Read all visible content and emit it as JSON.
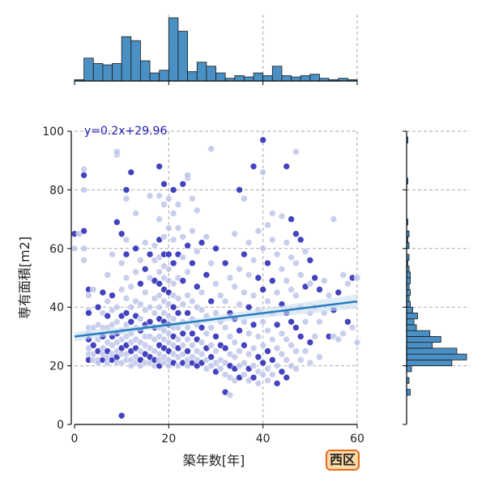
{
  "chart_data": {
    "type": "scatter",
    "xlabel": "築年数[年]",
    "ylabel": "専有面積[m2]",
    "xlim": [
      0,
      60
    ],
    "ylim": [
      0,
      100
    ],
    "x_ticks": [
      0,
      20,
      40,
      60
    ],
    "y_ticks": [
      0,
      20,
      40,
      60,
      80,
      100
    ],
    "grid": true,
    "regression": {
      "equation": "y=0.2x+29.96",
      "slope": 0.2,
      "intercept": 29.96
    },
    "badge": "西区",
    "colors": {
      "point_light": "#b6bde6",
      "point_dark": "#2222b4",
      "line": "#2a7bbf",
      "band": "#c9dff0",
      "hist": "#4a90c4",
      "badge_fill": "#fcd9a6",
      "badge_border": "#e86a1c"
    },
    "marginal_x_hist": {
      "bin_edges": [
        0,
        2,
        4,
        6,
        8,
        10,
        12,
        14,
        16,
        18,
        20,
        22,
        24,
        26,
        28,
        30,
        32,
        34,
        36,
        38,
        40,
        42,
        44,
        46,
        48,
        50,
        52,
        54,
        56,
        58,
        60
      ],
      "counts": [
        1,
        17,
        13,
        12,
        13,
        33,
        30,
        15,
        6,
        8,
        47,
        37,
        7,
        14,
        11,
        6,
        2,
        4,
        3,
        6,
        4,
        11,
        4,
        3,
        4,
        5,
        2,
        1,
        2,
        1
      ]
    },
    "marginal_y_hist": {
      "bin_edges": [
        10,
        12,
        14,
        16,
        18,
        20,
        22,
        24,
        26,
        28,
        30,
        32,
        34,
        36,
        38,
        40,
        42,
        44,
        46,
        48,
        50,
        52,
        54,
        56,
        58,
        60,
        62,
        64,
        66,
        68,
        70,
        72,
        74,
        76,
        78,
        80,
        82,
        84,
        86,
        88,
        90,
        92,
        94,
        96,
        98,
        100
      ],
      "counts": [
        3,
        0,
        2,
        0,
        4,
        37,
        49,
        41,
        21,
        28,
        19,
        8,
        6,
        9,
        5,
        3,
        2,
        3,
        2,
        3,
        3,
        2,
        1,
        2,
        0,
        2,
        1,
        2,
        0,
        1,
        0,
        0,
        0,
        0,
        0,
        0,
        1,
        0,
        0,
        0,
        0,
        0,
        0,
        1,
        0
      ]
    },
    "points": [
      [
        0,
        65
      ],
      [
        0,
        60
      ],
      [
        1,
        65
      ],
      [
        2,
        66
      ],
      [
        2,
        80
      ],
      [
        2,
        87
      ],
      [
        2,
        85
      ],
      [
        2,
        60
      ],
      [
        2,
        56
      ],
      [
        3,
        46
      ],
      [
        3,
        44
      ],
      [
        3,
        39
      ],
      [
        3,
        38
      ],
      [
        3,
        33
      ],
      [
        3,
        31
      ],
      [
        3,
        29
      ],
      [
        3,
        26
      ],
      [
        3,
        24
      ],
      [
        3,
        22
      ],
      [
        4,
        22
      ],
      [
        4,
        24
      ],
      [
        4,
        27
      ],
      [
        4,
        33
      ],
      [
        4,
        46
      ],
      [
        5,
        40
      ],
      [
        5,
        34
      ],
      [
        5,
        29
      ],
      [
        5,
        25
      ],
      [
        5,
        22
      ],
      [
        5,
        21
      ],
      [
        6,
        22
      ],
      [
        6,
        24
      ],
      [
        6,
        26
      ],
      [
        6,
        30
      ],
      [
        6,
        33
      ],
      [
        6,
        38
      ],
      [
        6,
        45
      ],
      [
        7,
        21
      ],
      [
        7,
        23
      ],
      [
        7,
        25
      ],
      [
        7,
        28
      ],
      [
        7,
        33
      ],
      [
        7,
        37
      ],
      [
        7,
        42
      ],
      [
        7,
        51
      ],
      [
        8,
        22
      ],
      [
        8,
        24
      ],
      [
        8,
        27
      ],
      [
        8,
        30
      ],
      [
        8,
        34
      ],
      [
        8,
        39
      ],
      [
        8,
        44
      ],
      [
        8,
        58
      ],
      [
        9,
        21
      ],
      [
        9,
        23
      ],
      [
        9,
        25
      ],
      [
        9,
        28
      ],
      [
        9,
        31
      ],
      [
        9,
        35
      ],
      [
        9,
        40
      ],
      [
        9,
        69
      ],
      [
        9,
        92
      ],
      [
        9,
        93
      ],
      [
        10,
        3
      ],
      [
        10,
        21
      ],
      [
        10,
        24
      ],
      [
        10,
        26
      ],
      [
        10,
        29
      ],
      [
        10,
        32
      ],
      [
        10,
        37
      ],
      [
        10,
        46
      ],
      [
        10,
        55
      ],
      [
        10,
        65
      ],
      [
        11,
        22
      ],
      [
        11,
        24
      ],
      [
        11,
        27
      ],
      [
        11,
        30
      ],
      [
        11,
        34
      ],
      [
        11,
        38
      ],
      [
        11,
        43
      ],
      [
        11,
        50
      ],
      [
        11,
        58
      ],
      [
        11,
        63
      ],
      [
        11,
        77
      ],
      [
        11,
        80
      ],
      [
        12,
        20
      ],
      [
        12,
        22
      ],
      [
        12,
        25
      ],
      [
        12,
        28
      ],
      [
        12,
        31
      ],
      [
        12,
        35
      ],
      [
        12,
        40
      ],
      [
        12,
        47
      ],
      [
        12,
        86
      ],
      [
        13,
        21
      ],
      [
        13,
        23
      ],
      [
        13,
        26
      ],
      [
        13,
        29
      ],
      [
        13,
        33
      ],
      [
        13,
        37
      ],
      [
        13,
        42
      ],
      [
        13,
        52
      ],
      [
        13,
        60
      ],
      [
        13,
        72
      ],
      [
        14,
        20
      ],
      [
        14,
        22
      ],
      [
        14,
        25
      ],
      [
        14,
        28
      ],
      [
        14,
        32
      ],
      [
        14,
        36
      ],
      [
        14,
        41
      ],
      [
        14,
        48
      ],
      [
        14,
        56
      ],
      [
        15,
        21
      ],
      [
        15,
        24
      ],
      [
        15,
        27
      ],
      [
        15,
        30
      ],
      [
        15,
        34
      ],
      [
        15,
        39
      ],
      [
        15,
        45
      ],
      [
        15,
        53
      ],
      [
        15,
        62
      ],
      [
        16,
        21
      ],
      [
        16,
        23
      ],
      [
        16,
        26
      ],
      [
        16,
        30
      ],
      [
        16,
        35
      ],
      [
        16,
        40
      ],
      [
        16,
        50
      ],
      [
        16,
        58
      ],
      [
        16,
        78
      ],
      [
        17,
        20
      ],
      [
        17,
        22
      ],
      [
        17,
        25
      ],
      [
        17,
        29
      ],
      [
        17,
        33
      ],
      [
        17,
        38
      ],
      [
        17,
        43
      ],
      [
        17,
        49
      ],
      [
        17,
        56
      ],
      [
        17,
        61
      ],
      [
        18,
        20
      ],
      [
        18,
        22
      ],
      [
        18,
        24
      ],
      [
        18,
        27
      ],
      [
        18,
        30
      ],
      [
        18,
        33
      ],
      [
        18,
        36
      ],
      [
        18,
        40
      ],
      [
        18,
        44
      ],
      [
        18,
        48
      ],
      [
        18,
        52
      ],
      [
        18,
        57
      ],
      [
        18,
        63
      ],
      [
        18,
        70
      ],
      [
        18,
        78
      ],
      [
        18,
        88
      ],
      [
        19,
        21
      ],
      [
        19,
        23
      ],
      [
        19,
        26
      ],
      [
        19,
        29
      ],
      [
        19,
        32
      ],
      [
        19,
        35
      ],
      [
        19,
        38
      ],
      [
        19,
        42
      ],
      [
        19,
        46
      ],
      [
        19,
        50
      ],
      [
        19,
        54
      ],
      [
        19,
        58
      ],
      [
        19,
        64
      ],
      [
        19,
        75
      ],
      [
        19,
        82
      ],
      [
        20,
        20
      ],
      [
        20,
        22
      ],
      [
        20,
        25
      ],
      [
        20,
        28
      ],
      [
        20,
        31
      ],
      [
        20,
        34
      ],
      [
        20,
        37
      ],
      [
        20,
        41
      ],
      [
        20,
        45
      ],
      [
        20,
        49
      ],
      [
        20,
        53
      ],
      [
        20,
        58
      ],
      [
        20,
        67
      ],
      [
        20,
        77
      ],
      [
        21,
        21
      ],
      [
        21,
        24
      ],
      [
        21,
        27
      ],
      [
        21,
        30
      ],
      [
        21,
        33
      ],
      [
        21,
        36
      ],
      [
        21,
        40
      ],
      [
        21,
        44
      ],
      [
        21,
        48
      ],
      [
        21,
        55
      ],
      [
        21,
        63
      ],
      [
        21,
        72
      ],
      [
        21,
        80
      ],
      [
        22,
        20
      ],
      [
        22,
        23
      ],
      [
        22,
        26
      ],
      [
        22,
        29
      ],
      [
        22,
        33
      ],
      [
        22,
        38
      ],
      [
        22,
        43
      ],
      [
        22,
        50
      ],
      [
        22,
        58
      ],
      [
        22,
        67
      ],
      [
        22,
        75
      ],
      [
        23,
        21
      ],
      [
        23,
        24
      ],
      [
        23,
        27
      ],
      [
        23,
        31
      ],
      [
        23,
        35
      ],
      [
        23,
        41
      ],
      [
        23,
        49
      ],
      [
        23,
        57
      ],
      [
        23,
        64
      ],
      [
        23,
        82
      ],
      [
        24,
        20
      ],
      [
        24,
        22
      ],
      [
        24,
        25
      ],
      [
        24,
        29
      ],
      [
        24,
        33
      ],
      [
        24,
        38
      ],
      [
        24,
        44
      ],
      [
        24,
        52
      ],
      [
        24,
        61
      ],
      [
        24,
        84
      ],
      [
        24,
        85
      ],
      [
        25,
        21
      ],
      [
        25,
        23
      ],
      [
        25,
        27
      ],
      [
        25,
        31
      ],
      [
        25,
        36
      ],
      [
        25,
        42
      ],
      [
        25,
        55
      ],
      [
        25,
        66
      ],
      [
        25,
        77
      ],
      [
        26,
        20
      ],
      [
        26,
        22
      ],
      [
        26,
        25
      ],
      [
        26,
        29
      ],
      [
        26,
        34
      ],
      [
        26,
        40
      ],
      [
        26,
        47
      ],
      [
        26,
        59
      ],
      [
        26,
        73
      ],
      [
        27,
        21
      ],
      [
        27,
        24
      ],
      [
        27,
        28
      ],
      [
        27,
        33
      ],
      [
        27,
        39
      ],
      [
        27,
        45
      ],
      [
        27,
        62
      ],
      [
        28,
        19
      ],
      [
        28,
        22
      ],
      [
        28,
        26
      ],
      [
        28,
        31
      ],
      [
        28,
        37
      ],
      [
        28,
        51
      ],
      [
        28,
        64
      ],
      [
        29,
        20
      ],
      [
        29,
        23
      ],
      [
        29,
        27
      ],
      [
        29,
        33
      ],
      [
        29,
        42
      ],
      [
        29,
        55
      ],
      [
        29,
        94
      ],
      [
        30,
        18
      ],
      [
        30,
        21
      ],
      [
        30,
        25
      ],
      [
        30,
        30
      ],
      [
        30,
        38
      ],
      [
        30,
        48
      ],
      [
        30,
        60
      ],
      [
        31,
        19
      ],
      [
        31,
        22
      ],
      [
        31,
        27
      ],
      [
        31,
        35
      ],
      [
        31,
        44
      ],
      [
        32,
        11
      ],
      [
        32,
        17
      ],
      [
        32,
        21
      ],
      [
        32,
        26
      ],
      [
        32,
        33
      ],
      [
        32,
        42
      ],
      [
        32,
        55
      ],
      [
        33,
        10
      ],
      [
        33,
        16
      ],
      [
        33,
        20
      ],
      [
        33,
        24
      ],
      [
        33,
        30
      ],
      [
        33,
        38
      ],
      [
        33,
        50
      ],
      [
        34,
        15
      ],
      [
        34,
        19
      ],
      [
        34,
        23
      ],
      [
        34,
        28
      ],
      [
        34,
        36
      ],
      [
        34,
        47
      ],
      [
        34,
        65
      ],
      [
        35,
        16
      ],
      [
        35,
        20
      ],
      [
        35,
        25
      ],
      [
        35,
        32
      ],
      [
        35,
        41
      ],
      [
        35,
        53
      ],
      [
        35,
        80
      ],
      [
        36,
        17
      ],
      [
        36,
        21
      ],
      [
        36,
        27
      ],
      [
        36,
        35
      ],
      [
        36,
        45
      ],
      [
        36,
        58
      ],
      [
        36,
        77
      ],
      [
        37,
        15
      ],
      [
        37,
        19
      ],
      [
        37,
        24
      ],
      [
        37,
        31
      ],
      [
        37,
        40
      ],
      [
        37,
        51
      ],
      [
        37,
        62
      ],
      [
        38,
        16
      ],
      [
        38,
        20
      ],
      [
        38,
        26
      ],
      [
        38,
        34
      ],
      [
        38,
        44
      ],
      [
        38,
        56
      ],
      [
        38,
        88
      ],
      [
        39,
        14
      ],
      [
        39,
        18
      ],
      [
        39,
        23
      ],
      [
        39,
        30
      ],
      [
        39,
        39
      ],
      [
        39,
        50
      ],
      [
        39,
        66
      ],
      [
        40,
        17
      ],
      [
        40,
        21
      ],
      [
        40,
        27
      ],
      [
        40,
        35
      ],
      [
        40,
        46
      ],
      [
        40,
        60
      ],
      [
        40,
        86
      ],
      [
        40,
        97
      ],
      [
        41,
        15
      ],
      [
        41,
        19
      ],
      [
        41,
        25
      ],
      [
        41,
        32
      ],
      [
        41,
        42
      ],
      [
        41,
        55
      ],
      [
        41,
        68
      ],
      [
        42,
        17
      ],
      [
        42,
        22
      ],
      [
        42,
        29
      ],
      [
        42,
        38
      ],
      [
        42,
        49
      ],
      [
        42,
        63
      ],
      [
        42,
        72
      ],
      [
        43,
        14
      ],
      [
        43,
        20
      ],
      [
        43,
        26
      ],
      [
        43,
        34
      ],
      [
        43,
        45
      ],
      [
        43,
        58
      ],
      [
        44,
        18
      ],
      [
        44,
        24
      ],
      [
        44,
        31
      ],
      [
        44,
        41
      ],
      [
        44,
        53
      ],
      [
        44,
        71
      ],
      [
        45,
        16
      ],
      [
        45,
        22
      ],
      [
        45,
        29
      ],
      [
        45,
        38
      ],
      [
        45,
        49
      ],
      [
        45,
        62
      ],
      [
        45,
        88
      ],
      [
        46,
        20
      ],
      [
        46,
        27
      ],
      [
        46,
        35
      ],
      [
        46,
        46
      ],
      [
        46,
        57
      ],
      [
        46,
        70
      ],
      [
        47,
        19
      ],
      [
        47,
        25
      ],
      [
        47,
        33
      ],
      [
        47,
        44
      ],
      [
        47,
        55
      ],
      [
        47,
        65
      ],
      [
        47,
        93
      ],
      [
        48,
        22
      ],
      [
        48,
        30
      ],
      [
        48,
        40
      ],
      [
        48,
        51
      ],
      [
        48,
        63
      ],
      [
        49,
        25
      ],
      [
        49,
        35
      ],
      [
        49,
        47
      ],
      [
        49,
        59
      ],
      [
        50,
        21
      ],
      [
        50,
        28
      ],
      [
        50,
        38
      ],
      [
        50,
        48
      ],
      [
        50,
        56
      ],
      [
        51,
        30
      ],
      [
        51,
        40
      ],
      [
        51,
        50
      ],
      [
        52,
        23
      ],
      [
        52,
        35
      ],
      [
        52,
        46
      ],
      [
        53,
        38
      ],
      [
        53,
        49
      ],
      [
        54,
        30
      ],
      [
        54,
        44
      ],
      [
        55,
        30
      ],
      [
        55,
        39
      ],
      [
        55,
        70
      ],
      [
        56,
        29
      ],
      [
        56,
        45
      ],
      [
        57,
        31
      ],
      [
        57,
        51
      ],
      [
        58,
        35
      ],
      [
        58,
        48
      ],
      [
        59,
        33
      ],
      [
        59,
        50
      ],
      [
        60,
        28
      ],
      [
        60,
        50
      ]
    ]
  }
}
